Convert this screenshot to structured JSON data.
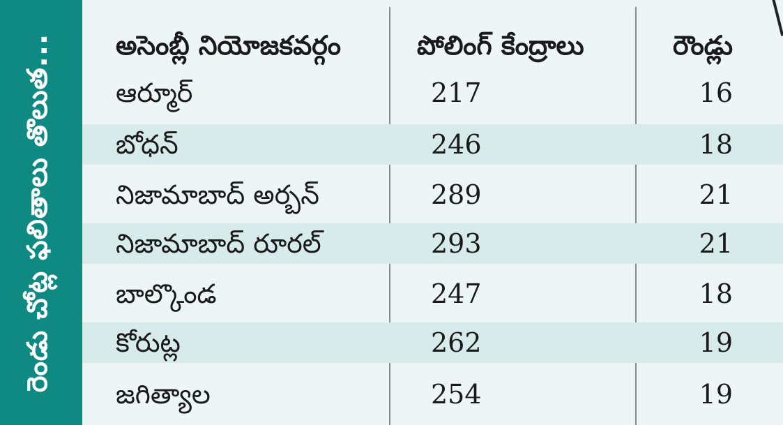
{
  "side_title": "రెండు చోట్ల ఫలితాలు తొలుత...",
  "table": {
    "headers": {
      "constituency": "అసెంబ్లీ నియోజకవర్గం",
      "polling_stations": "పోలింగ్ కేంద్రాలు",
      "rounds": "రౌండ్లు"
    },
    "rows": [
      {
        "constituency": "ఆర్మూర్",
        "polling_stations": "217",
        "rounds": "16"
      },
      {
        "constituency": "బోధన్",
        "polling_stations": "246",
        "rounds": "18"
      },
      {
        "constituency": "నిజామాబాద్ అర్బన్",
        "polling_stations": "289",
        "rounds": "21"
      },
      {
        "constituency": "నిజామాబాద్ రూరల్",
        "polling_stations": "293",
        "rounds": "21"
      },
      {
        "constituency": "బాల్కొండ",
        "polling_stations": "247",
        "rounds": "18"
      },
      {
        "constituency": "కోరుట్ల",
        "polling_stations": "262",
        "rounds": "19"
      },
      {
        "constituency": "జగిత్యాల",
        "polling_stations": "254",
        "rounds": "19"
      }
    ]
  },
  "colors": {
    "band": "#0f8a82",
    "background": "#eef6f5",
    "shaded_row": "#d7ebea",
    "divider": "#8a8a8a"
  }
}
